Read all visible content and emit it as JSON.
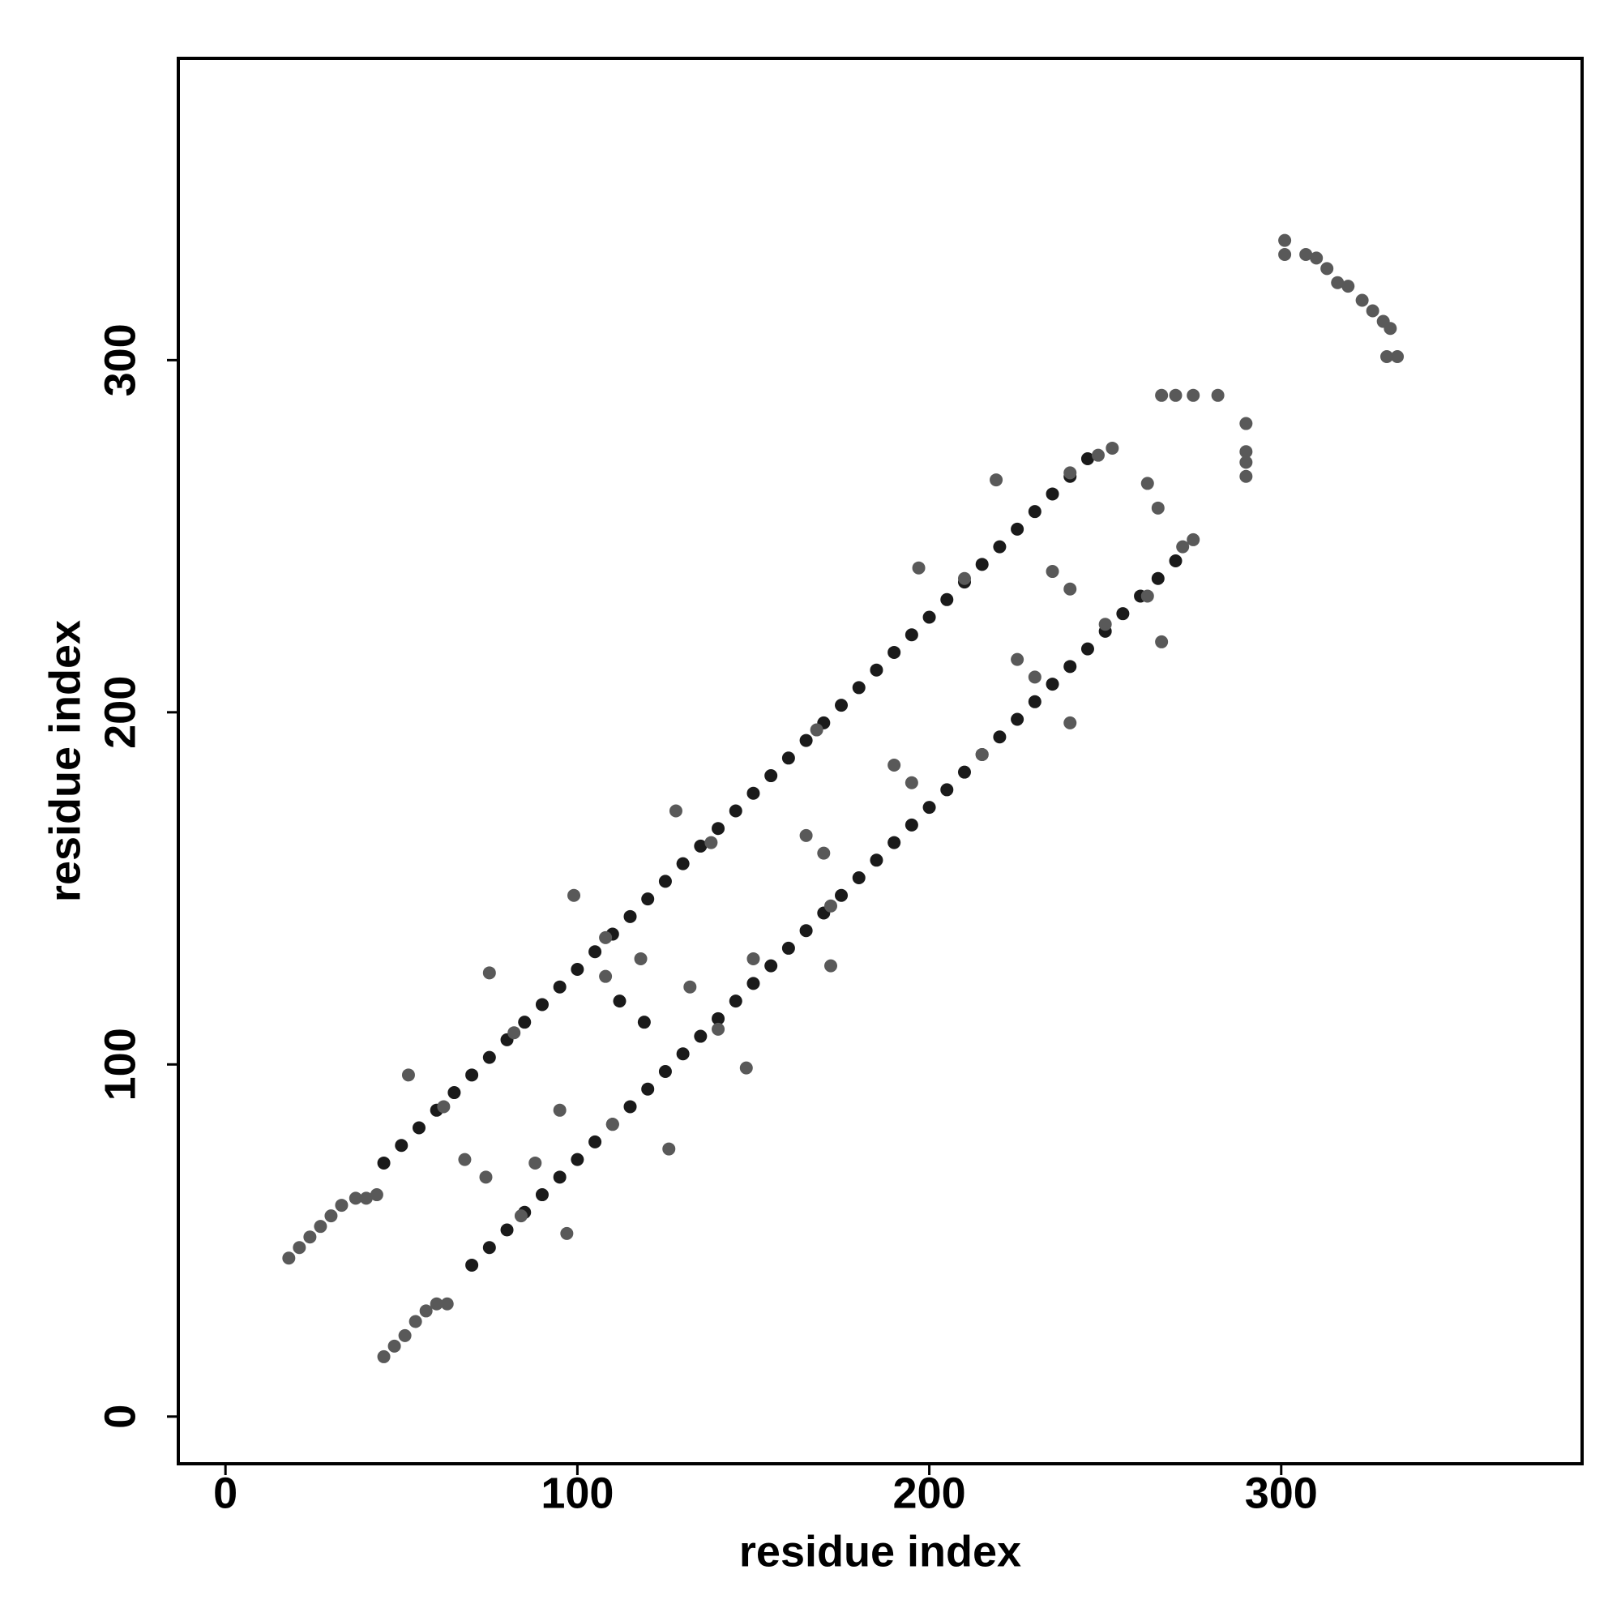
{
  "chart_data": {
    "type": "scatter",
    "xlabel": "residue index",
    "ylabel": "residue index",
    "xlim": [
      -13.4,
      385.5
    ],
    "ylim": [
      -13.4,
      385.7
    ],
    "xticks": [
      0,
      100,
      200,
      300
    ],
    "yticks": [
      0,
      100,
      200,
      300
    ],
    "grid": false,
    "series": [
      {
        "color": "#1a1a1a",
        "x": [
          45,
          50,
          55,
          60,
          65,
          70,
          75,
          80,
          85,
          90,
          95,
          100,
          105,
          110,
          115,
          120,
          125,
          130,
          135,
          140,
          145,
          150,
          155,
          160,
          165,
          170,
          175,
          180,
          185,
          190,
          195,
          200,
          205,
          210,
          215,
          220,
          225,
          230,
          235,
          240,
          245,
          70,
          75,
          80,
          85,
          90,
          95,
          100,
          105,
          110,
          115,
          120,
          125,
          130,
          135,
          140,
          145,
          150,
          155,
          160,
          165,
          170,
          175,
          180,
          185,
          190,
          195,
          200,
          205,
          210,
          215,
          220,
          225,
          230,
          235,
          240,
          245,
          250,
          255,
          260,
          265,
          270,
          112,
          119
        ],
        "values": [
          72,
          77,
          82,
          87,
          92,
          97,
          102,
          107,
          112,
          117,
          122,
          127,
          132,
          137,
          142,
          147,
          152,
          157,
          162,
          167,
          172,
          177,
          182,
          187,
          192,
          197,
          202,
          207,
          212,
          217,
          222,
          227,
          232,
          237,
          242,
          247,
          252,
          257,
          262,
          267,
          272,
          43,
          48,
          53,
          58,
          63,
          68,
          73,
          78,
          83,
          88,
          93,
          98,
          103,
          108,
          113,
          118,
          123,
          128,
          133,
          138,
          143,
          148,
          153,
          158,
          163,
          168,
          173,
          178,
          183,
          188,
          193,
          198,
          203,
          208,
          213,
          218,
          223,
          228,
          233,
          238,
          243,
          118,
          112
        ]
      },
      {
        "color": "#595959",
        "x": [
          18,
          21,
          24,
          27,
          30,
          33,
          37,
          40,
          43,
          45,
          48,
          51,
          54,
          57,
          60,
          63,
          62,
          82,
          108,
          138,
          168,
          210,
          240,
          248,
          252,
          84,
          110,
          140,
          172,
          215,
          250,
          262,
          272,
          275,
          68,
          74,
          88,
          95,
          108,
          118,
          132,
          150,
          165,
          170,
          190,
          195,
          225,
          230,
          235,
          240,
          52,
          75,
          99,
          128,
          197,
          219,
          240,
          266,
          172,
          148,
          126,
          97,
          262,
          265,
          301,
          301,
          307,
          310,
          313,
          316,
          319,
          323,
          326,
          329,
          331,
          333,
          330,
          266,
          270,
          275,
          282,
          290,
          290,
          290,
          290
        ],
        "values": [
          45,
          48,
          51,
          54,
          57,
          60,
          62,
          62,
          63,
          17,
          20,
          23,
          27,
          30,
          32,
          32,
          88,
          109,
          136,
          163,
          195,
          238,
          268,
          273,
          275,
          57,
          83,
          110,
          145,
          188,
          225,
          233,
          247,
          249,
          73,
          68,
          72,
          87,
          125,
          130,
          122,
          130,
          165,
          160,
          185,
          180,
          215,
          210,
          240,
          235,
          97,
          126,
          148,
          172,
          241,
          266,
          197,
          220,
          128,
          99,
          76,
          52,
          265,
          258,
          334,
          330,
          330,
          329,
          326,
          322,
          321,
          317,
          314,
          311,
          309,
          301,
          301,
          290,
          290,
          290,
          290,
          282,
          274,
          271,
          267
        ]
      }
    ]
  }
}
